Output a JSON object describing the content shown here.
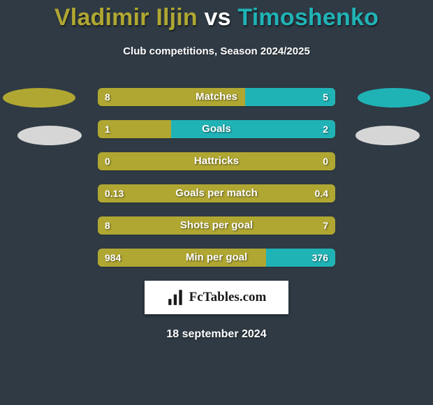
{
  "title": {
    "player1": "Vladimir Iljin",
    "vs": "vs",
    "player2": "Timoshenko",
    "player1_color": "#b0a732",
    "player2_color": "#20b3b6",
    "vs_color": "#ffffff",
    "fontsize": 34
  },
  "subtitle": "Club competitions, Season 2024/2025",
  "background_color": "#2f3a44",
  "ellipses": {
    "left_primary_color": "#b0a732",
    "right_primary_color": "#20b3b6",
    "secondary_color": "#d6d6d6"
  },
  "bars": {
    "track_width": 340,
    "track_height": 26,
    "border_radius": 6,
    "row_gap": 20,
    "left_color": "#b0a732",
    "right_color": "#20b3b6",
    "label_color": "#ffffff",
    "label_fontsize": 15,
    "value_fontsize": 14,
    "rows": [
      {
        "label": "Matches",
        "left_value": "8",
        "right_value": "5",
        "right_fill_pct": 38
      },
      {
        "label": "Goals",
        "left_value": "1",
        "right_value": "2",
        "right_fill_pct": 69
      },
      {
        "label": "Hattricks",
        "left_value": "0",
        "right_value": "0",
        "right_fill_pct": 0
      },
      {
        "label": "Goals per match",
        "left_value": "0.13",
        "right_value": "0.4",
        "right_fill_pct": 0
      },
      {
        "label": "Shots per goal",
        "left_value": "8",
        "right_value": "7",
        "right_fill_pct": 0
      },
      {
        "label": "Min per goal",
        "left_value": "984",
        "right_value": "376",
        "right_fill_pct": 29
      }
    ]
  },
  "footer": {
    "brand": "FcTables.com",
    "date": "18 september 2024",
    "logo_bg": "#ffffff",
    "brand_color": "#1a1a1a"
  }
}
